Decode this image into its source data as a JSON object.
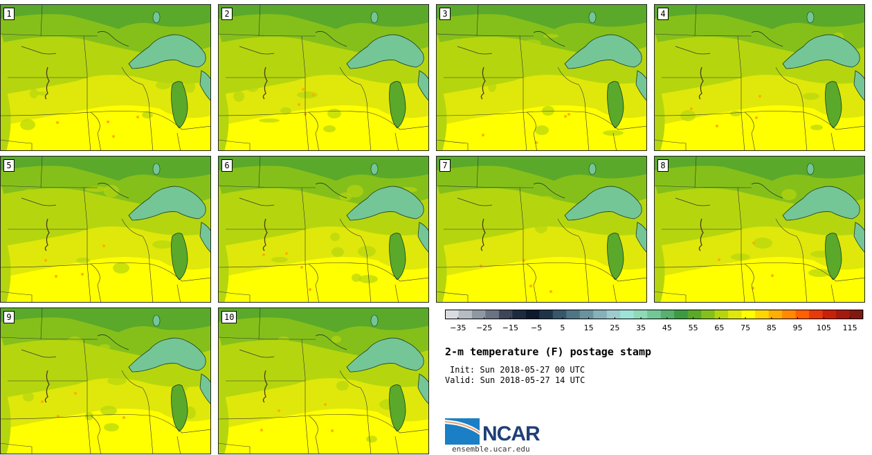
{
  "panels": [
    {
      "label": "1"
    },
    {
      "label": "2"
    },
    {
      "label": "3"
    },
    {
      "label": "4"
    },
    {
      "label": "5"
    },
    {
      "label": "6"
    },
    {
      "label": "7"
    },
    {
      "label": "8"
    },
    {
      "label": "9"
    },
    {
      "label": "10"
    }
  ],
  "colorbar": {
    "colors": [
      "#d9dce0",
      "#b6bcc4",
      "#8f97a3",
      "#6a7382",
      "#3d4759",
      "#1e2a3d",
      "#0d1a2e",
      "#1f3448",
      "#36566a",
      "#4f7585",
      "#6a939f",
      "#86b1b8",
      "#9fcbcc",
      "#9ee3d8",
      "#8fd8b8",
      "#74c697",
      "#57b06e",
      "#3d9a43",
      "#5aa92a",
      "#85c01a",
      "#b5d60e",
      "#dfe80a",
      "#ffff00",
      "#ffd700",
      "#ffb000",
      "#ff8a00",
      "#ff6000",
      "#e63a0a",
      "#c92008",
      "#a51a0e",
      "#801a10"
    ],
    "tick_labels": [
      "−35",
      "−25",
      "−15",
      "−5",
      "5",
      "15",
      "25",
      "35",
      "45",
      "55",
      "65",
      "75",
      "85",
      "95",
      "105",
      "115"
    ],
    "tick_values": [
      -35,
      -25,
      -15,
      -5,
      5,
      15,
      25,
      35,
      45,
      55,
      65,
      75,
      85,
      95,
      105,
      115
    ],
    "min": -40,
    "max": 120
  },
  "title": "2-m temperature (F) postage stamp",
  "init": "Init: Sun 2018-05-27 00 UTC",
  "valid": "Valid: Sun 2018-05-27 14 UTC",
  "logo_text": "NCAR",
  "url": "ensemble.ucar.edu",
  "colors": {
    "land_hot": "#ffff00",
    "land_warm": "#dfe80a",
    "land_mid": "#b5d60e",
    "land_cool": "#85c01a",
    "land_cold": "#5aa92a",
    "lake": "#74c697"
  }
}
